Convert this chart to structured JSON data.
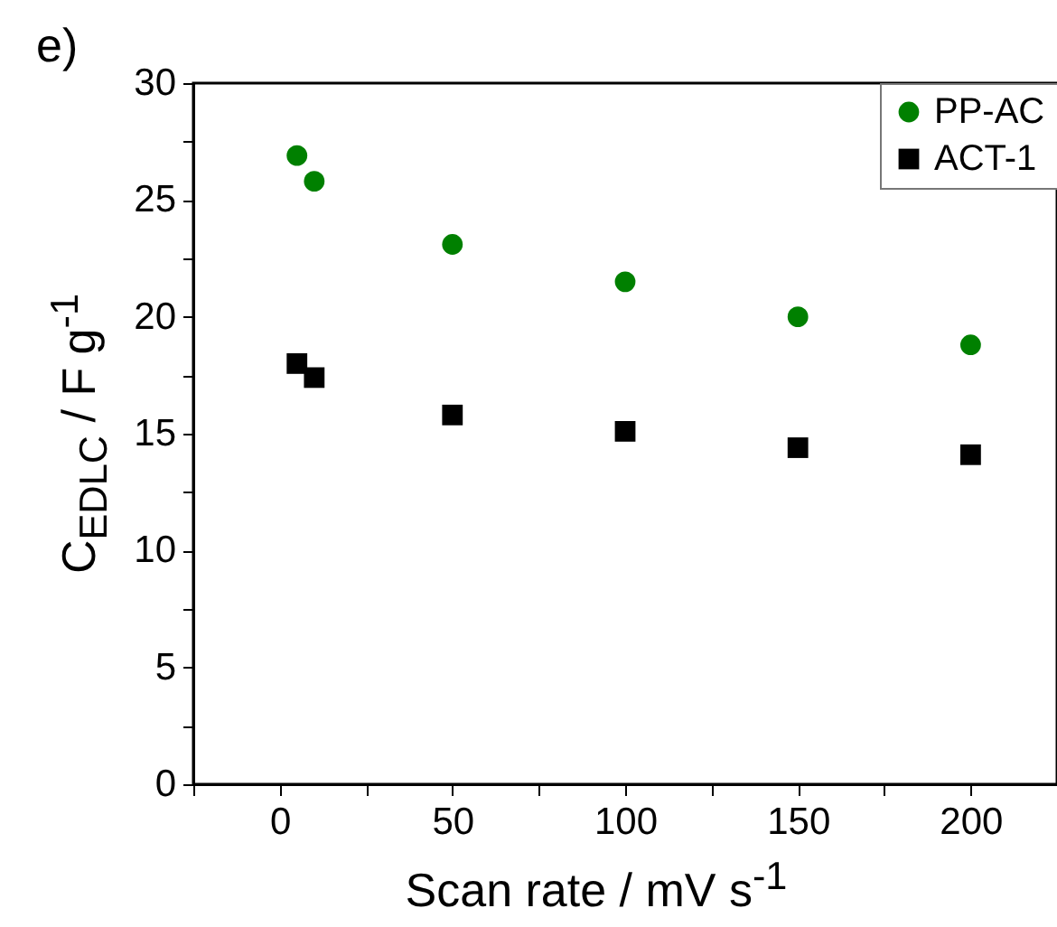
{
  "chart_data": {
    "type": "scatter",
    "title": "e)",
    "xlabel": "Scan rate / mV s$^{-1}$",
    "ylabel": "C$_{EDLC}$ / F g$^{-1}$",
    "x": [
      5,
      10,
      50,
      100,
      150,
      200
    ],
    "series": [
      {
        "name": "PP-AC",
        "color": "#008000",
        "marker": "circle",
        "values": [
          26.9,
          25.8,
          23.1,
          21.5,
          20.0,
          18.8
        ]
      },
      {
        "name": "ACT-1",
        "color": "#000000",
        "marker": "square",
        "values": [
          18.0,
          17.4,
          15.8,
          15.1,
          14.4,
          14.1
        ]
      }
    ],
    "xlim": [
      -25,
      225
    ],
    "xticks": [
      {
        "value": -25,
        "label": null
      },
      0,
      {
        "value": 25,
        "label": null
      },
      50,
      {
        "value": 75,
        "label": null
      },
      100,
      {
        "value": 125,
        "label": null
      },
      150,
      {
        "value": 175,
        "label": null
      },
      200
    ],
    "ylim": [
      0,
      30
    ],
    "yticks": [
      0,
      {
        "value": 2.5,
        "label": null
      },
      5,
      {
        "value": 7.5,
        "label": null
      },
      10,
      {
        "value": 12.5,
        "label": null
      },
      15,
      {
        "value": 17.5,
        "label": null
      },
      20,
      {
        "value": 22.5,
        "label": null
      },
      25,
      {
        "value": 27.5,
        "label": null
      },
      30
    ],
    "grid": false,
    "legend": "top right"
  }
}
